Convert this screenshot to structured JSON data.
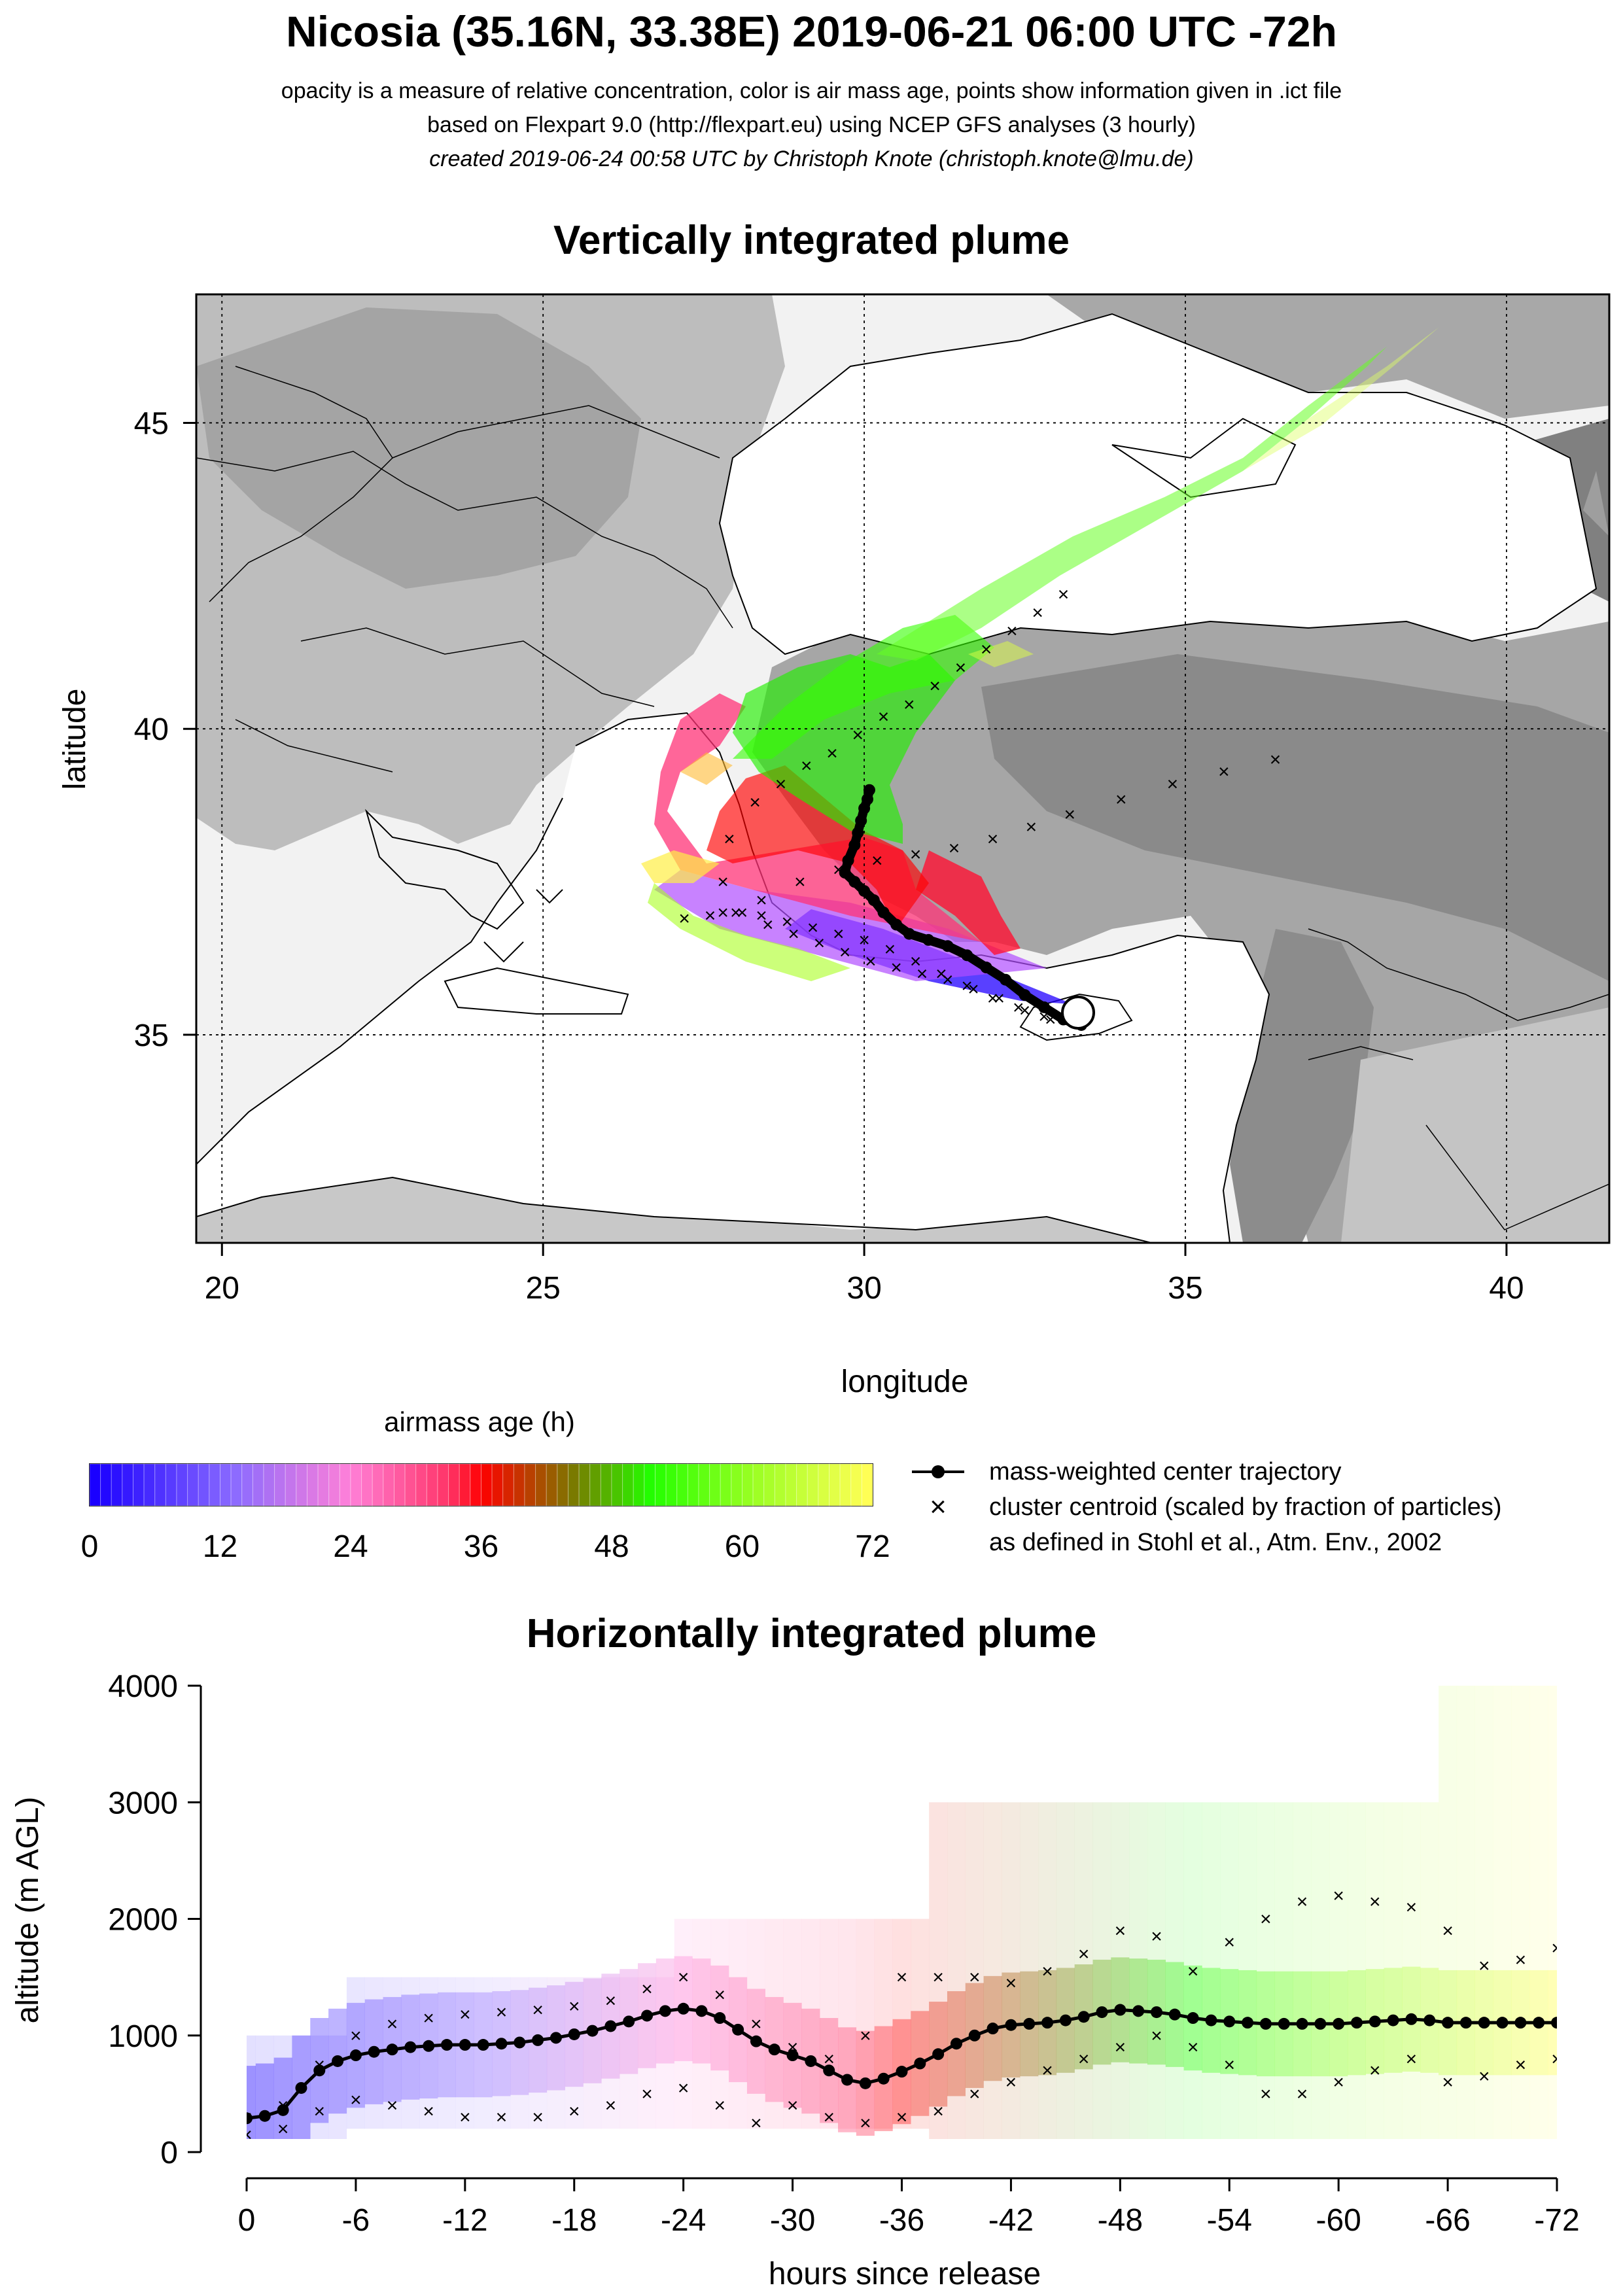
{
  "header": {
    "title": "Nicosia (35.16N, 33.38E) 2019-06-21 06:00 UTC -72h",
    "line1": "opacity is a measure of relative concentration, color is air mass age, points show information given in .ict file",
    "line2": "based on Flexpart 9.0 (http://flexpart.eu) using NCEP GFS analyses (3 hourly)",
    "line3": "created 2019-06-24 00:58 UTC by Christoph Knote (christoph.knote@lmu.de)"
  },
  "map": {
    "title": "Vertically integrated plume",
    "xlabel": "longitude",
    "ylabel": "latitude",
    "xticks": [
      "20",
      "25",
      "30",
      "35",
      "40"
    ],
    "yticks": [
      "35",
      "40",
      "45"
    ]
  },
  "colorbar": {
    "title": "airmass age (h)",
    "ticks": [
      "0",
      "12",
      "24",
      "36",
      "48",
      "60",
      "72"
    ]
  },
  "legend": {
    "line": "mass-weighted center trajectory",
    "cross1": "cluster centroid (scaled by fraction of particles)",
    "cross2": "as defined in Stohl et al., Atm. Env., 2002"
  },
  "hz": {
    "title": "Horizontally integrated plume",
    "xlabel": "hours since release",
    "ylabel": "altitude (m AGL)",
    "xticks": [
      "0",
      "-6",
      "-12",
      "-18",
      "-24",
      "-30",
      "-36",
      "-42",
      "-48",
      "-54",
      "-60",
      "-66",
      "-72"
    ],
    "yticks": [
      "0",
      "1000",
      "2000",
      "3000",
      "4000"
    ]
  },
  "colors": {
    "age0": "#1a00ff",
    "age24": "#ff66cc",
    "age36": "#ff0000",
    "age48": "#66aa00",
    "age60": "#22ff00",
    "age72": "#ffff66"
  },
  "chart_data": [
    {
      "type": "scatter",
      "title": "Vertically integrated plume",
      "xlabel": "longitude",
      "ylabel": "latitude",
      "xlim": [
        19.6,
        41.6
      ],
      "ylim": [
        31.6,
        47.1
      ],
      "grid": true,
      "release_site": {
        "lon": 33.38,
        "lat": 35.16
      },
      "series": [
        {
          "name": "mass-weighted center trajectory",
          "lon": [
            33.38,
            33.1,
            32.8,
            32.5,
            32.2,
            31.9,
            31.6,
            31.3,
            31.0,
            30.7,
            30.5,
            30.3,
            30.15,
            30.0,
            29.85,
            29.7,
            29.75,
            29.85,
            29.9,
            29.95,
            30.0,
            30.05,
            30.08
          ],
          "lat": [
            35.16,
            35.25,
            35.45,
            35.65,
            35.9,
            36.1,
            36.3,
            36.45,
            36.55,
            36.65,
            36.8,
            37.0,
            37.2,
            37.35,
            37.5,
            37.65,
            37.85,
            38.1,
            38.3,
            38.5,
            38.7,
            38.85,
            39.0
          ]
        },
        {
          "name": "cluster centroid (scaled by fraction of particles)",
          "lon": [
            32.9,
            32.5,
            32.1,
            31.7,
            31.3,
            30.9,
            30.5,
            30.1,
            29.7,
            29.3,
            28.9,
            28.5,
            28.1,
            27.8,
            27.9,
            28.3,
            28.7,
            29.1,
            29.5,
            29.9,
            30.3,
            30.7,
            31.1,
            31.5,
            31.9,
            32.3,
            32.7,
            33.1,
            32.8,
            32.4,
            32.0,
            31.6,
            31.2,
            30.8,
            30.4,
            30.0,
            29.6,
            29.2,
            28.8,
            28.4,
            28.0,
            27.6,
            27.2,
            27.8,
            28.4,
            29.0,
            29.6,
            30.2,
            30.8,
            31.4,
            32.0,
            32.6,
            33.2,
            34.0,
            34.8,
            35.6,
            36.4
          ],
          "lat": [
            35.25,
            35.4,
            35.6,
            35.75,
            35.9,
            36.0,
            36.1,
            36.2,
            36.35,
            36.5,
            36.65,
            36.8,
            37.0,
            37.5,
            38.2,
            38.8,
            39.1,
            39.4,
            39.6,
            39.9,
            40.2,
            40.4,
            40.7,
            41.0,
            41.3,
            41.6,
            41.9,
            42.2,
            35.3,
            35.45,
            35.6,
            35.8,
            36.0,
            36.2,
            36.4,
            36.55,
            36.65,
            36.75,
            36.85,
            36.95,
            37.0,
            36.95,
            36.9,
            37.0,
            37.2,
            37.5,
            37.7,
            37.85,
            37.95,
            38.05,
            38.2,
            38.4,
            38.6,
            38.85,
            39.1,
            39.3,
            39.5
          ]
        }
      ]
    },
    {
      "type": "scatter",
      "title": "Horizontally integrated plume",
      "xlabel": "hours since release",
      "ylabel": "altitude (m AGL)",
      "xlim": [
        0,
        -72
      ],
      "ylim": [
        0,
        4000
      ],
      "series": [
        {
          "name": "mass-weighted center trajectory",
          "x": [
            0,
            -1,
            -2,
            -3,
            -4,
            -5,
            -6,
            -7,
            -8,
            -9,
            -10,
            -11,
            -12,
            -13,
            -14,
            -15,
            -16,
            -17,
            -18,
            -19,
            -20,
            -21,
            -22,
            -23,
            -24,
            -25,
            -26,
            -27,
            -28,
            -29,
            -30,
            -31,
            -32,
            -33,
            -34,
            -35,
            -36,
            -37,
            -38,
            -39,
            -40,
            -41,
            -42,
            -43,
            -44,
            -45,
            -46,
            -47,
            -48,
            -49,
            -50,
            -51,
            -52,
            -53,
            -54,
            -55,
            -56,
            -57,
            -58,
            -59,
            -60,
            -61,
            -62,
            -63,
            -64,
            -65,
            -66,
            -67,
            -68,
            -69,
            -70,
            -71,
            -72
          ],
          "y": [
            290,
            310,
            360,
            550,
            700,
            780,
            830,
            860,
            880,
            900,
            910,
            920,
            920,
            920,
            930,
            940,
            960,
            980,
            1010,
            1040,
            1080,
            1120,
            1170,
            1210,
            1230,
            1210,
            1150,
            1050,
            950,
            880,
            830,
            780,
            700,
            620,
            590,
            630,
            690,
            760,
            840,
            930,
            1000,
            1060,
            1090,
            1100,
            1110,
            1130,
            1160,
            1200,
            1220,
            1210,
            1200,
            1180,
            1150,
            1130,
            1120,
            1110,
            1100,
            1100,
            1100,
            1100,
            1100,
            1110,
            1120,
            1130,
            1140,
            1130,
            1110,
            1110,
            1110,
            1110,
            1110,
            1110,
            1110
          ]
        },
        {
          "name": "cluster centroid upper",
          "x": [
            0,
            -2,
            -4,
            -6,
            -8,
            -10,
            -12,
            -14,
            -16,
            -18,
            -20,
            -22,
            -24,
            -26,
            -28,
            -30,
            -32,
            -34,
            -36,
            -38,
            -40,
            -42,
            -44,
            -46,
            -48,
            -50,
            -52,
            -54,
            -56,
            -58,
            -60,
            -62,
            -64,
            -66,
            -68,
            -70,
            -72
          ],
          "y": [
            300,
            400,
            750,
            1000,
            1100,
            1150,
            1180,
            1200,
            1220,
            1250,
            1300,
            1400,
            1500,
            1350,
            1100,
            900,
            800,
            1000,
            1500,
            1500,
            1500,
            1450,
            1550,
            1700,
            1900,
            1850,
            1550,
            1800,
            2000,
            2150,
            2200,
            2150,
            2100,
            1900,
            1600,
            1650,
            1750
          ]
        },
        {
          "name": "cluster centroid lower",
          "x": [
            0,
            -2,
            -4,
            -6,
            -8,
            -10,
            -12,
            -14,
            -16,
            -18,
            -20,
            -22,
            -24,
            -26,
            -28,
            -30,
            -32,
            -34,
            -36,
            -38,
            -40,
            -42,
            -44,
            -46,
            -48,
            -50,
            -52,
            -54,
            -56,
            -58,
            -60,
            -62,
            -64,
            -66,
            -68,
            -70,
            -72
          ],
          "y": [
            150,
            200,
            350,
            450,
            400,
            350,
            300,
            300,
            300,
            350,
            400,
            500,
            550,
            400,
            250,
            400,
            300,
            250,
            300,
            350,
            500,
            600,
            700,
            800,
            900,
            1000,
            900,
            750,
            500,
            500,
            600,
            700,
            800,
            600,
            650,
            750,
            800
          ]
        }
      ]
    }
  ]
}
